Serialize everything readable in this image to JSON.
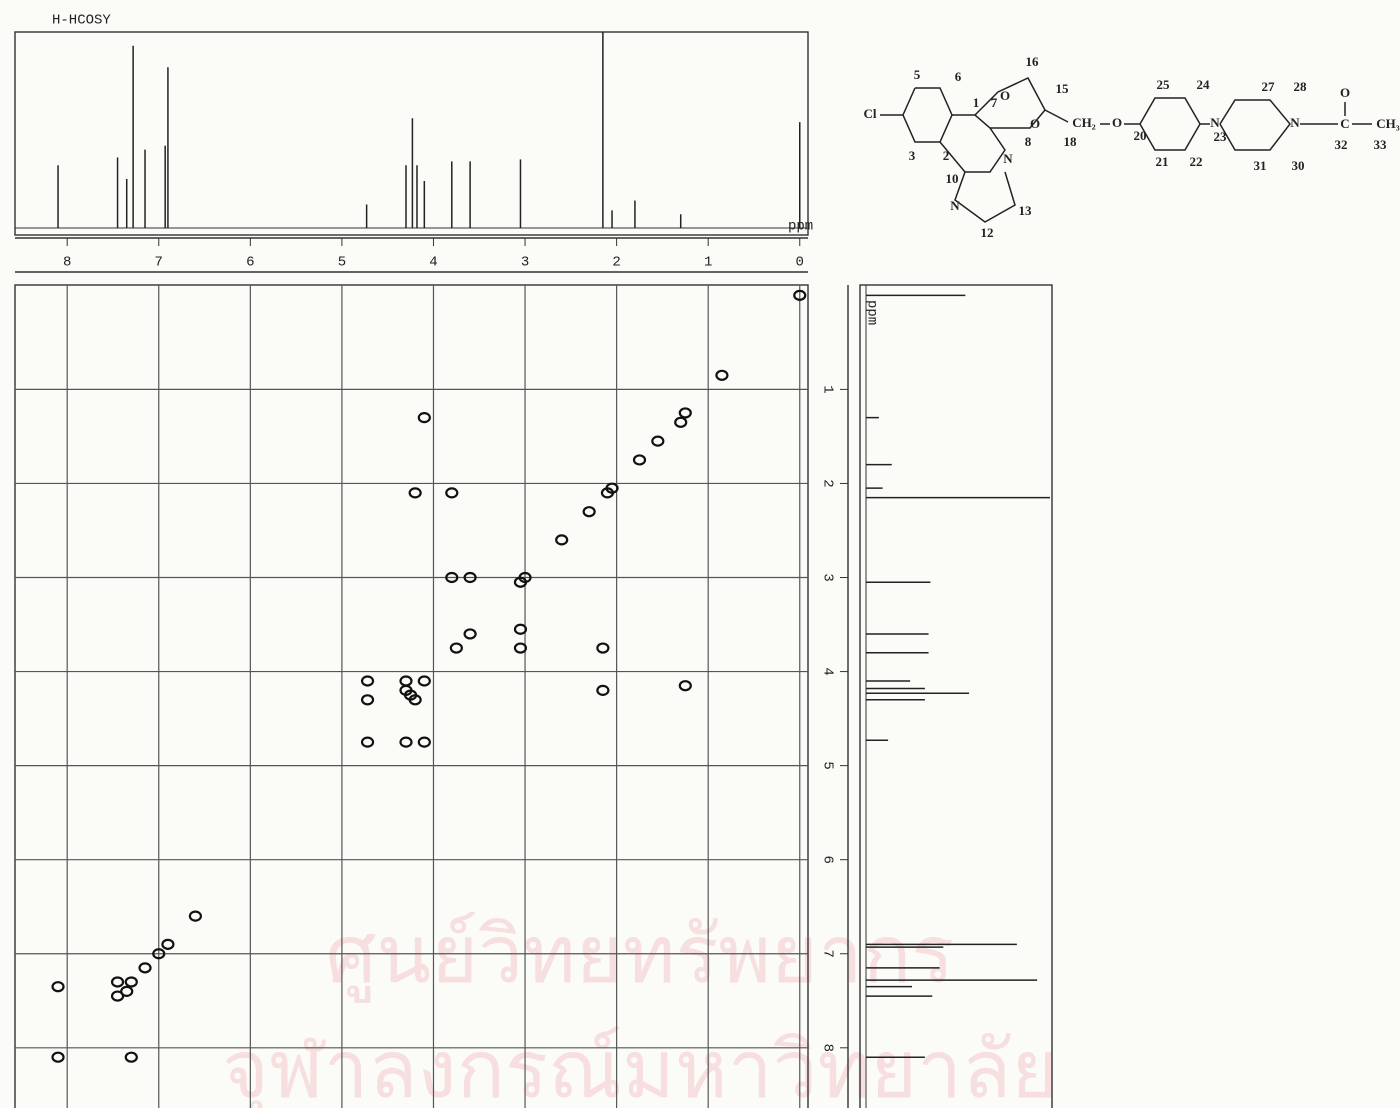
{
  "chart_data": {
    "type": "scatter",
    "title": "H-HCOSY",
    "x_label": "ppm",
    "y_label": "ppm",
    "xlim": [
      8.57,
      -0.09
    ],
    "ylim": [
      -0.11,
      8.64
    ],
    "xticks": [
      8,
      7,
      6,
      5,
      4,
      3,
      2,
      1,
      0
    ],
    "yticks": [
      1,
      2,
      3,
      4,
      5,
      6,
      7,
      8
    ],
    "grid": true,
    "color": "#111111",
    "x": [
      0,
      0.85,
      1.25,
      1.3,
      1.55,
      1.75,
      2.05,
      2.1,
      2.3,
      2.6,
      3.0,
      3.05,
      3.6,
      3.75,
      4.1,
      4.25,
      4.3,
      4.1,
      3.8,
      4.2,
      3.8,
      3.6,
      3.05,
      3.05,
      2.15,
      2.15,
      1.25,
      4.72,
      4.72,
      4.72,
      4.3,
      4.1,
      4.3,
      4.2,
      6.9,
      7.0,
      7.15,
      7.3,
      7.35,
      7.45,
      7.45,
      8.1,
      8.1,
      7.3,
      6.6
    ],
    "values": [
      0,
      0.85,
      1.25,
      1.35,
      1.55,
      1.75,
      2.05,
      2.1,
      2.3,
      2.6,
      3.0,
      3.05,
      3.6,
      3.75,
      4.1,
      4.25,
      4.2,
      1.3,
      2.1,
      2.1,
      3.0,
      3.0,
      3.55,
      3.75,
      3.75,
      4.2,
      4.15,
      4.1,
      4.3,
      4.75,
      4.75,
      4.75,
      4.1,
      4.3,
      6.9,
      7.0,
      7.15,
      7.3,
      7.4,
      7.45,
      7.3,
      7.35,
      8.1,
      8.1,
      6.6
    ],
    "spectrum": {
      "x": [
        8.1,
        7.45,
        7.35,
        7.28,
        7.15,
        6.93,
        6.9,
        4.73,
        4.3,
        4.23,
        4.18,
        4.1,
        3.8,
        3.6,
        3.05,
        2.15,
        2.05,
        1.8,
        1.3,
        0.0
      ],
      "values": [
        32,
        36,
        25,
        93,
        40,
        42,
        82,
        12,
        32,
        56,
        32,
        24,
        34,
        34,
        35,
        100,
        9,
        14,
        7,
        54
      ],
      "ylim": [
        0,
        100
      ]
    }
  },
  "structure": {
    "labels": [
      "Cl",
      "5",
      "6",
      "3",
      "2",
      "1",
      "7",
      "8",
      "10",
      "N",
      "12",
      "13",
      "N",
      "O",
      "O",
      "16",
      "15",
      "18",
      "CH₂",
      "O",
      "25",
      "24",
      "20",
      "23",
      "21",
      "22",
      "N",
      "27",
      "28",
      "31",
      "30",
      "N",
      "O",
      "C",
      "32",
      "33",
      "CH₃"
    ]
  },
  "watermark": [
    "ศูนย์วิทยทรัพยากร",
    "จุฬาลงกรณ์มหาวิทยาลัย"
  ]
}
